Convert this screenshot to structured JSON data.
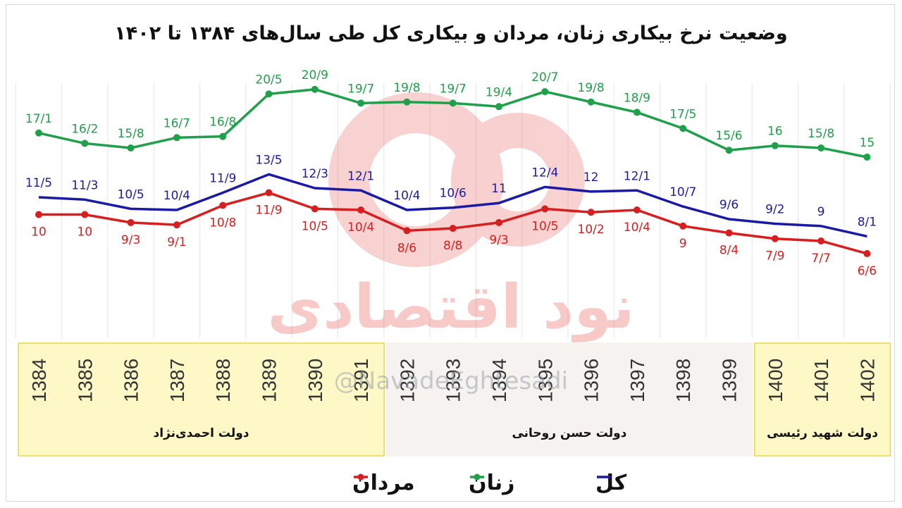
{
  "chart_data": {
    "type": "line",
    "title": "وضعیت نرخ بیکاری زنان، مردان و بیکاری کل طی سال‌های ۱۳۸۴ تا ۱۴۰۲",
    "categories": [
      "1384",
      "1385",
      "1386",
      "1387",
      "1388",
      "1389",
      "1390",
      "1391",
      "1392",
      "1393",
      "1394",
      "1395",
      "1396",
      "1397",
      "1398",
      "1399",
      "1400",
      "1401",
      "1402"
    ],
    "series": [
      {
        "name": "زنان",
        "color": "#1fa04a",
        "values": [
          17.1,
          16.2,
          15.8,
          16.7,
          16.8,
          20.5,
          20.9,
          19.7,
          19.8,
          19.7,
          19.4,
          20.7,
          19.8,
          18.9,
          17.5,
          15.6,
          16,
          15.8,
          15
        ],
        "labels": [
          "17/1",
          "16/2",
          "15/8",
          "16/7",
          "16/8",
          "20/5",
          "20/9",
          "19/7",
          "19/8",
          "19/7",
          "19/4",
          "20/7",
          "19/8",
          "18/9",
          "17/5",
          "15/6",
          "16",
          "15/8",
          "15"
        ]
      },
      {
        "name": "کل",
        "color": "#1a1aa6",
        "values": [
          11.5,
          11.3,
          10.5,
          10.4,
          11.9,
          13.5,
          12.3,
          12.1,
          10.4,
          10.6,
          11,
          12.4,
          12,
          12.1,
          10.7,
          9.6,
          9.2,
          9,
          8.1
        ],
        "labels": [
          "11/5",
          "11/3",
          "10/5",
          "10/4",
          "11/9",
          "13/5",
          "12/3",
          "12/1",
          "10/4",
          "10/6",
          "11",
          "12/4",
          "12",
          "12/1",
          "10/7",
          "9/6",
          "9/2",
          "9",
          "8/1"
        ]
      },
      {
        "name": "مردان",
        "color": "#d81e1e",
        "values": [
          10,
          10,
          9.3,
          9.1,
          10.8,
          11.9,
          10.5,
          10.4,
          8.6,
          8.8,
          9.3,
          10.5,
          10.2,
          10.4,
          9,
          8.4,
          7.9,
          7.7,
          6.6
        ],
        "labels": [
          "10",
          "10",
          "9/3",
          "9/1",
          "10/8",
          "11/9",
          "10/5",
          "10/4",
          "8/6",
          "8/8",
          "9/3",
          "10/5",
          "10/2",
          "10/4",
          "9",
          "8/4",
          "7/9",
          "7/7",
          "6/6"
        ]
      }
    ],
    "governments": [
      {
        "label": "دولت احمدی‌نژاد",
        "from": "1384",
        "to": "1391",
        "fill": "#fdf8c6",
        "border": "#e6d84a"
      },
      {
        "label": "دولت حسن روحانی",
        "from": "1392",
        "to": "1399",
        "fill": "#f6f2ef",
        "border": "#f6f2ef"
      },
      {
        "label": "دولت شهید رئیسی",
        "from": "1400",
        "to": "1402",
        "fill": "#fdf8c6",
        "border": "#e6d84a"
      }
    ],
    "legend": [
      {
        "label": "کل",
        "color": "#1a1aa6"
      },
      {
        "label": "زنان",
        "color": "#1fa04a"
      },
      {
        "label": "مردان",
        "color": "#d81e1e"
      }
    ],
    "grid": true,
    "watermark": {
      "handle": "@NavadeEghtesadi",
      "brand": "نود اقتصادی"
    }
  }
}
